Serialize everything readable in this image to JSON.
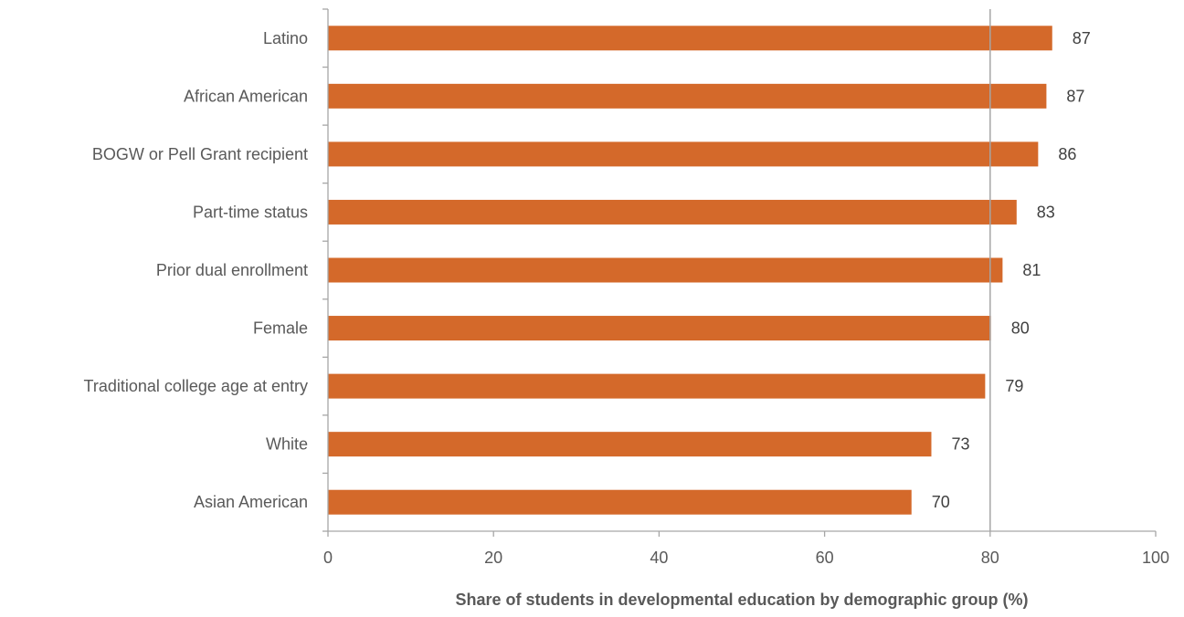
{
  "chart_data": {
    "type": "bar",
    "orientation": "horizontal",
    "categories": [
      "Latino",
      "African American",
      "BOGW or Pell Grant recipient",
      "Part-time status",
      "Prior dual enrollment",
      "Female",
      "Traditional college age at entry",
      "White",
      "Asian American"
    ],
    "values": [
      87.5,
      86.8,
      85.8,
      83.2,
      81.5,
      80.1,
      79.4,
      72.9,
      70.5
    ],
    "data_labels": [
      "87",
      "87",
      "86",
      "83",
      "81",
      "80",
      "79",
      "73",
      "70"
    ],
    "xlabel": "Share of students in developmental education by demographic group (%)",
    "ylabel": "",
    "xlim": [
      0,
      100
    ],
    "xticks": [
      "0",
      "20",
      "40",
      "60",
      "80",
      "100"
    ],
    "reference_line": 80,
    "grid": false,
    "legend": "none",
    "colors": {
      "bar": "#D4692A",
      "axis": "#A6A6A6",
      "reference_line": "#A6A6A6",
      "category_text": "#595959",
      "label_text": "#404040",
      "xlabel_text": "#595959"
    }
  }
}
